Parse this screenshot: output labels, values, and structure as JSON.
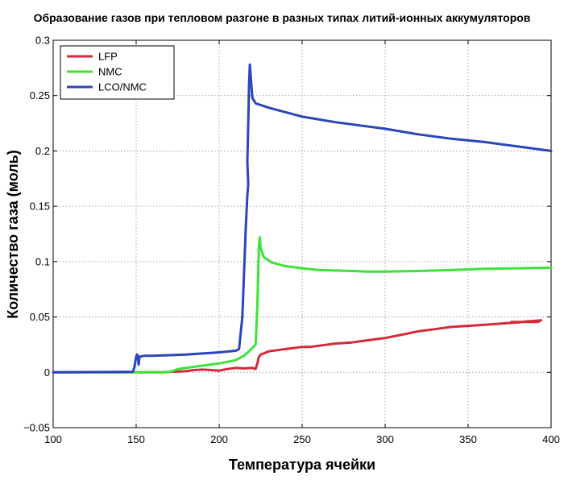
{
  "chart_data": {
    "type": "line",
    "title": "Образование газов при тепловом разгоне в разных типах литий-ионных аккумуляторов",
    "xlabel": "Температура ячейки",
    "ylabel": "Количество газа (моль)",
    "xlim": [
      100,
      400
    ],
    "ylim": [
      -0.05,
      0.3
    ],
    "x_ticks": [
      100,
      150,
      200,
      250,
      300,
      350,
      400
    ],
    "y_ticks": [
      -0.05,
      0,
      0.05,
      0.1,
      0.15,
      0.2,
      0.25,
      0.3
    ],
    "y_tick_labels": [
      "−0.05",
      "0",
      "0.05",
      "0.1",
      "0.15",
      "0.2",
      "0.25",
      "0.3"
    ],
    "grid": true,
    "legend_position": "top-left",
    "series": [
      {
        "name": "LFP",
        "color": "#d42a3c",
        "points": [
          [
            100,
            0
          ],
          [
            140,
            0
          ],
          [
            165,
            0
          ],
          [
            172,
            0.0005
          ],
          [
            180,
            0.001
          ],
          [
            185,
            0.002
          ],
          [
            190,
            0.0025
          ],
          [
            195,
            0.002
          ],
          [
            200,
            0.0015
          ],
          [
            205,
            0.003
          ],
          [
            210,
            0.004
          ],
          [
            215,
            0.0035
          ],
          [
            220,
            0.004
          ],
          [
            222,
            0.003
          ],
          [
            223,
            0.008
          ],
          [
            224,
            0.014
          ],
          [
            225,
            0.016
          ],
          [
            230,
            0.019
          ],
          [
            235,
            0.02
          ],
          [
            240,
            0.021
          ],
          [
            245,
            0.022
          ],
          [
            250,
            0.023
          ],
          [
            255,
            0.023
          ],
          [
            260,
            0.024
          ],
          [
            270,
            0.026
          ],
          [
            280,
            0.027
          ],
          [
            290,
            0.029
          ],
          [
            300,
            0.031
          ],
          [
            310,
            0.034
          ],
          [
            320,
            0.037
          ],
          [
            330,
            0.039
          ],
          [
            340,
            0.041
          ],
          [
            350,
            0.042
          ],
          [
            360,
            0.043
          ],
          [
            370,
            0.044
          ],
          [
            380,
            0.045
          ],
          [
            385,
            0.046
          ],
          [
            390,
            0.0465
          ],
          [
            394,
            0.047
          ],
          [
            392,
            0.0455
          ],
          [
            385,
            0.0455
          ],
          [
            376,
            0.0455
          ]
        ]
      },
      {
        "name": "NMC",
        "color": "#3de23a",
        "points": [
          [
            100,
            0
          ],
          [
            150,
            0
          ],
          [
            168,
            0
          ],
          [
            172,
            0.001
          ],
          [
            175,
            0.003
          ],
          [
            180,
            0.004
          ],
          [
            190,
            0.006
          ],
          [
            200,
            0.008
          ],
          [
            210,
            0.011
          ],
          [
            215,
            0.015
          ],
          [
            218,
            0.019
          ],
          [
            220,
            0.022
          ],
          [
            222,
            0.025
          ],
          [
            223,
            0.06
          ],
          [
            224,
            0.115
          ],
          [
            224.5,
            0.122
          ],
          [
            225,
            0.112
          ],
          [
            227,
            0.104
          ],
          [
            232,
            0.099
          ],
          [
            240,
            0.096
          ],
          [
            250,
            0.094
          ],
          [
            260,
            0.0925
          ],
          [
            270,
            0.092
          ],
          [
            280,
            0.0915
          ],
          [
            290,
            0.091
          ],
          [
            300,
            0.091
          ],
          [
            320,
            0.0915
          ],
          [
            340,
            0.0925
          ],
          [
            360,
            0.0935
          ],
          [
            380,
            0.094
          ],
          [
            400,
            0.0945
          ]
        ]
      },
      {
        "name": "LCO/NMC",
        "color": "#2b45ba",
        "points": [
          [
            100,
            0
          ],
          [
            148,
            0.0005
          ],
          [
            149,
            0.005
          ],
          [
            150,
            0.014
          ],
          [
            150.5,
            0.016
          ],
          [
            151,
            0.015
          ],
          [
            151.5,
            0.007
          ],
          [
            152,
            0.014
          ],
          [
            155,
            0.015
          ],
          [
            160,
            0.015
          ],
          [
            170,
            0.0155
          ],
          [
            180,
            0.016
          ],
          [
            190,
            0.017
          ],
          [
            200,
            0.018
          ],
          [
            210,
            0.0195
          ],
          [
            212,
            0.021
          ],
          [
            214,
            0.05
          ],
          [
            215,
            0.09
          ],
          [
            216,
            0.13
          ],
          [
            217,
            0.16
          ],
          [
            217.5,
            0.17
          ],
          [
            217,
            0.19
          ],
          [
            217.5,
            0.225
          ],
          [
            218,
            0.26
          ],
          [
            218.5,
            0.278
          ],
          [
            219,
            0.268
          ],
          [
            220,
            0.248
          ],
          [
            222,
            0.243
          ],
          [
            230,
            0.239
          ],
          [
            240,
            0.235
          ],
          [
            250,
            0.231
          ],
          [
            270,
            0.226
          ],
          [
            290,
            0.222
          ],
          [
            300,
            0.22
          ],
          [
            320,
            0.215
          ],
          [
            340,
            0.211
          ],
          [
            360,
            0.208
          ],
          [
            380,
            0.204
          ],
          [
            400,
            0.2
          ]
        ]
      }
    ]
  }
}
